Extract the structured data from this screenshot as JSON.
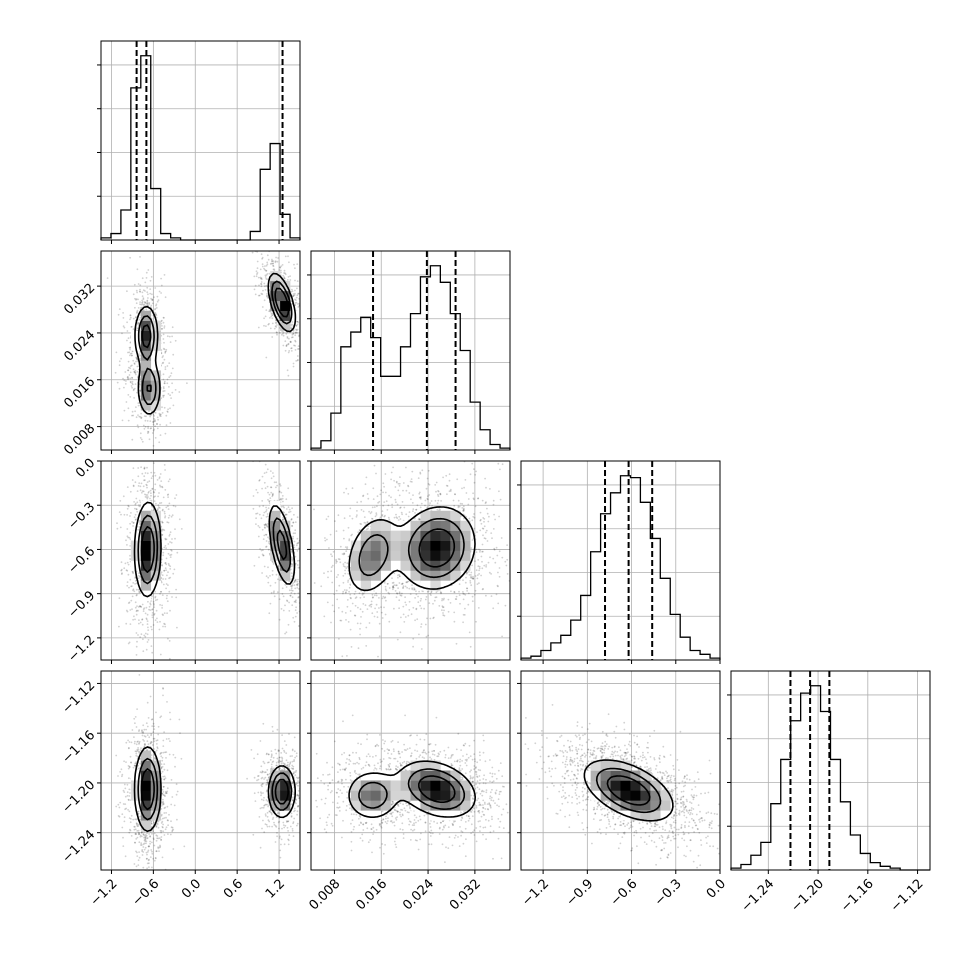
{
  "chart_data": {
    "type": "corner",
    "grid": true,
    "parameters": [
      {
        "index": 0,
        "range": [
          -1.35,
          1.5
        ],
        "ticks": [
          -1.2,
          -0.6,
          0.0,
          0.6,
          1.2
        ],
        "tick_labels": [
          "−1.2",
          "−0.6",
          "0.0",
          "0.6",
          "1.2"
        ],
        "histogram": {
          "edges": [
            -1.35,
            -1.2075,
            -1.065,
            -0.9225,
            -0.78,
            -0.6375,
            -0.495,
            -0.3525,
            -0.21,
            -0.0675,
            0.075,
            0.2175,
            0.36,
            0.5025,
            0.645,
            0.7875,
            0.93,
            1.0725,
            1.215,
            1.3575,
            1.5
          ],
          "counts": [
            1,
            3,
            14,
            71,
            86,
            24,
            3,
            1,
            0,
            0,
            0,
            0,
            0,
            0,
            0,
            4,
            33,
            45,
            12,
            1
          ]
        },
        "quantiles": [
          -0.84,
          -0.7,
          1.25
        ]
      },
      {
        "index": 1,
        "range": [
          0.004,
          0.038
        ],
        "ticks": [
          0.008,
          0.016,
          0.024,
          0.032
        ],
        "tick_labels": [
          "0.008",
          "0.016",
          "0.024",
          "0.032"
        ],
        "histogram": {
          "edges": [
            0.004,
            0.0057,
            0.0074,
            0.0091,
            0.0108,
            0.0125,
            0.0142,
            0.0159,
            0.0176,
            0.0193,
            0.021,
            0.0227,
            0.0244,
            0.0261,
            0.0278,
            0.0295,
            0.0312,
            0.0329,
            0.0346,
            0.0363,
            0.038
          ],
          "counts": [
            1,
            5,
            20,
            56,
            64,
            72,
            61,
            40,
            40,
            56,
            74,
            94,
            100,
            91,
            74,
            54,
            26,
            11,
            3,
            1
          ]
        },
        "quantiles": [
          0.0146,
          0.0238,
          0.0287
        ]
      },
      {
        "index": 2,
        "range": [
          -1.35,
          0.0
        ],
        "ticks": [
          -1.2,
          -0.9,
          -0.6,
          -0.3,
          0.0
        ],
        "tick_labels": [
          "−1.2",
          "−0.9",
          "−0.6",
          "−0.3",
          "0.0"
        ],
        "histogram": {
          "edges": [
            -1.35,
            -1.2825,
            -1.215,
            -1.1475,
            -1.08,
            -1.0125,
            -0.945,
            -0.8775,
            -0.81,
            -0.7425,
            -0.675,
            -0.6075,
            -0.54,
            -0.4725,
            -0.405,
            -0.3375,
            -0.27,
            -0.2025,
            -0.135,
            -0.0675,
            0.0
          ],
          "counts": [
            1,
            2,
            5,
            9,
            13,
            21,
            34,
            57,
            77,
            88,
            97,
            96,
            83,
            64,
            43,
            24,
            12,
            5,
            3,
            1
          ]
        },
        "quantiles": [
          -0.78,
          -0.62,
          -0.46
        ]
      },
      {
        "index": 3,
        "range": [
          -1.27,
          -1.11
        ],
        "ticks": [
          -1.24,
          -1.2,
          -1.16,
          -1.12
        ],
        "tick_labels": [
          "−1.24",
          "−1.20",
          "−1.16",
          "−1.12"
        ],
        "histogram": {
          "edges": [
            -1.27,
            -1.262,
            -1.254,
            -1.246,
            -1.238,
            -1.23,
            -1.222,
            -1.214,
            -1.206,
            -1.198,
            -1.19,
            -1.182,
            -1.174,
            -1.166,
            -1.158,
            -1.15,
            -1.142,
            -1.134,
            -1.126,
            -1.118,
            -1.11
          ],
          "counts": [
            1,
            3,
            8,
            15,
            36,
            60,
            81,
            96,
            100,
            86,
            60,
            37,
            19,
            9,
            4,
            2,
            1,
            0,
            0,
            0
          ]
        },
        "quantiles": [
          -1.2222,
          -1.2064,
          -1.1909
        ]
      }
    ],
    "pairs": [
      {
        "row": 1,
        "col": 0,
        "modes": [
          {
            "mx": -0.7,
            "my": 0.0235,
            "sx": 0.09,
            "sy": 0.0028,
            "rho": 0.0,
            "w": 0.35
          },
          {
            "mx": -0.66,
            "my": 0.0145,
            "sx": 0.09,
            "sy": 0.0026,
            "rho": 0.0,
            "w": 0.27
          },
          {
            "mx": 1.24,
            "my": 0.0292,
            "sx": 0.1,
            "sy": 0.0026,
            "rho": -0.55,
            "w": 0.38
          }
        ]
      },
      {
        "row": 2,
        "col": 0,
        "modes": [
          {
            "mx": -0.68,
            "my": -0.6,
            "sx": 0.1,
            "sy": 0.17,
            "rho": 0.05,
            "w": 0.62
          },
          {
            "mx": 1.24,
            "my": -0.57,
            "sx": 0.1,
            "sy": 0.15,
            "rho": -0.55,
            "w": 0.38
          }
        ]
      },
      {
        "row": 2,
        "col": 1,
        "modes": [
          {
            "mx": 0.0145,
            "my": -0.64,
            "sx": 0.0025,
            "sy": 0.15,
            "rho": 0.3,
            "w": 0.3
          },
          {
            "mx": 0.0255,
            "my": -0.59,
            "sx": 0.0035,
            "sy": 0.15,
            "rho": 0.1,
            "w": 0.7
          }
        ]
      },
      {
        "row": 3,
        "col": 0,
        "modes": [
          {
            "mx": -0.68,
            "my": -1.205,
            "sx": 0.1,
            "sy": 0.018,
            "rho": 0.0,
            "w": 0.62
          },
          {
            "mx": 1.24,
            "my": -1.207,
            "sx": 0.1,
            "sy": 0.011,
            "rho": 0.0,
            "w": 0.38
          }
        ]
      },
      {
        "row": 3,
        "col": 1,
        "modes": [
          {
            "mx": 0.0145,
            "my": -1.21,
            "sx": 0.0025,
            "sy": 0.011,
            "rho": 0.0,
            "w": 0.3
          },
          {
            "mx": 0.0255,
            "my": -1.205,
            "sx": 0.0035,
            "sy": 0.012,
            "rho": -0.3,
            "w": 0.7
          }
        ]
      },
      {
        "row": 3,
        "col": 2,
        "modes": [
          {
            "mx": -0.62,
            "my": -1.206,
            "sx": 0.16,
            "sy": 0.013,
            "rho": -0.5,
            "w": 1.0
          }
        ]
      }
    ]
  }
}
